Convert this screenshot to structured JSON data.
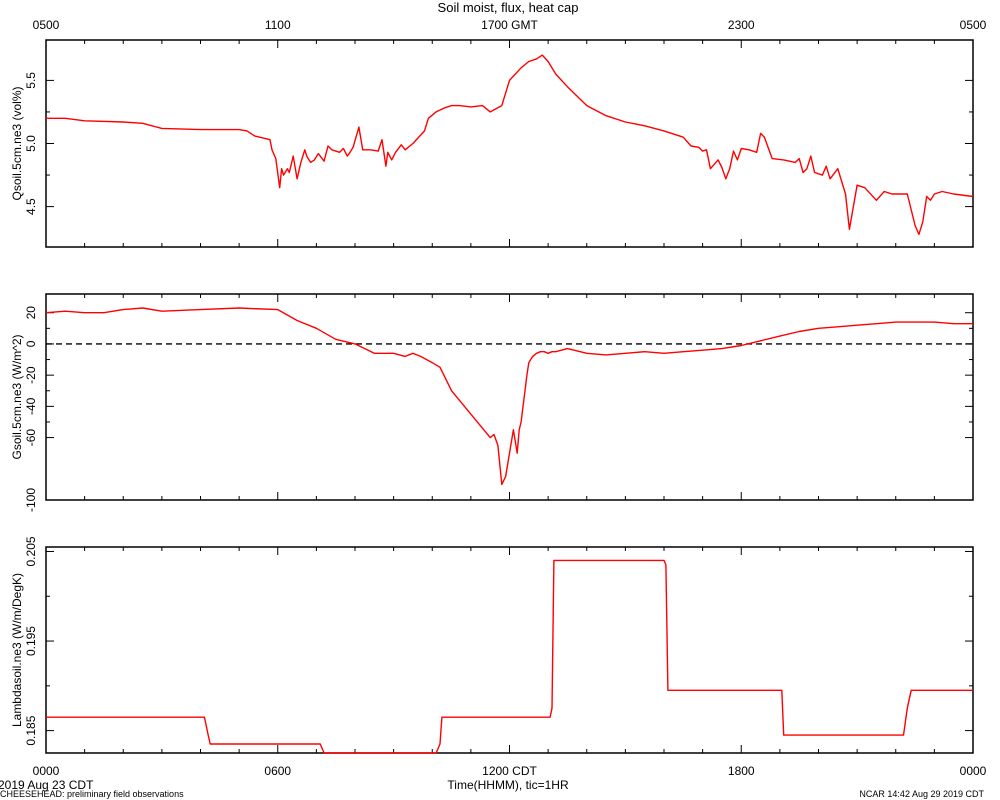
{
  "page": {
    "title": "Soil moist, flux, heat cap",
    "footer_left": "CHEESEHEAD: preliminary field observations",
    "footer_right": "NCAR 14:42 Aug 29 2019 CDT",
    "date_label": "2019 Aug 23 CDT"
  },
  "colors": {
    "series": "#ff0000",
    "axis": "#000000",
    "zero_line": "#000000"
  },
  "chart_data": [
    {
      "type": "line",
      "title": "Soil moist, flux, heat cap",
      "ylabel": "Qsoil.5cm.ne3 (vol%)",
      "ylim": [
        4.18,
        5.82
      ],
      "yticks": [
        4.5,
        5.0,
        5.5
      ],
      "ytick_labels": [
        "4.5",
        "5.0",
        "5.5"
      ],
      "x_top_tick_hours": [
        0,
        6,
        12,
        18,
        24
      ],
      "x_top_tick_labels": [
        "0500",
        "1100",
        "1700 GMT",
        "2300",
        "0500"
      ],
      "series": [
        {
          "x": [
            0,
            0.5,
            1,
            2,
            2.5,
            3,
            4,
            5,
            5.2,
            5.4,
            5.8,
            5.85,
            5.95,
            6.05,
            6.1,
            6.15,
            6.25,
            6.3,
            6.4,
            6.5,
            6.6,
            6.7,
            6.75,
            6.85,
            6.95,
            7.05,
            7.2,
            7.3,
            7.4,
            7.6,
            7.7,
            7.8,
            7.85,
            7.95,
            8.1,
            8.2,
            8.4,
            8.6,
            8.7,
            8.8,
            8.85,
            8.95,
            9.05,
            9.2,
            9.3,
            9.5,
            9.8,
            9.9,
            10.1,
            10.3,
            10.5,
            10.7,
            11,
            11.3,
            11.5,
            11.8,
            12,
            12.3,
            12.5,
            12.7,
            12.85,
            13,
            13.2,
            13.5,
            14,
            14.5,
            15,
            15.5,
            16,
            16.5,
            16.7,
            16.9,
            17,
            17.1,
            17.2,
            17.4,
            17.5,
            17.6,
            17.7,
            17.8,
            17.9,
            18,
            18.2,
            18.4,
            18.5,
            18.6,
            18.8,
            19.1,
            19.4,
            19.5,
            19.6,
            19.7,
            19.8,
            19.9,
            20.1,
            20.2,
            20.3,
            20.5,
            20.7,
            20.8,
            21,
            21.2,
            21.5,
            21.7,
            21.9,
            22.1,
            22.3,
            22.5,
            22.6,
            22.7,
            22.8,
            22.9,
            23,
            23.2,
            23.5,
            24
          ],
          "y": [
            5.2,
            5.2,
            5.18,
            5.17,
            5.16,
            5.12,
            5.11,
            5.11,
            5.1,
            5.06,
            5.03,
            4.95,
            4.88,
            4.65,
            4.8,
            4.75,
            4.8,
            4.77,
            4.9,
            4.72,
            4.85,
            4.95,
            4.9,
            4.85,
            4.87,
            4.92,
            4.86,
            4.98,
            4.95,
            4.93,
            4.96,
            4.9,
            4.92,
            4.97,
            5.13,
            4.95,
            4.95,
            4.94,
            5.03,
            4.82,
            4.93,
            4.87,
            4.93,
            4.99,
            4.95,
            5,
            5.1,
            5.2,
            5.25,
            5.28,
            5.3,
            5.3,
            5.29,
            5.3,
            5.25,
            5.3,
            5.5,
            5.6,
            5.65,
            5.67,
            5.7,
            5.65,
            5.55,
            5.45,
            5.3,
            5.22,
            5.17,
            5.14,
            5.1,
            5.05,
            4.98,
            4.97,
            4.94,
            4.95,
            4.8,
            4.87,
            4.81,
            4.72,
            4.8,
            4.94,
            4.87,
            4.96,
            4.95,
            4.93,
            5.08,
            5.05,
            4.88,
            4.87,
            4.85,
            4.88,
            4.77,
            4.8,
            4.9,
            4.77,
            4.75,
            4.82,
            4.72,
            4.8,
            4.6,
            4.32,
            4.67,
            4.65,
            4.55,
            4.62,
            4.6,
            4.6,
            4.6,
            4.35,
            4.28,
            4.38,
            4.58,
            4.55,
            4.6,
            4.62,
            4.6,
            4.58
          ]
        }
      ]
    },
    {
      "type": "line",
      "ylabel": "Gsoil.5cm.ne3 (W/m^2)",
      "ylim": [
        -100,
        32
      ],
      "yticks": [
        20,
        0,
        -20,
        -40,
        -60,
        -100
      ],
      "ytick_labels": [
        "20",
        "0",
        "-20",
        "-40",
        "-60",
        "-100"
      ],
      "zero_line": true,
      "series": [
        {
          "x": [
            0,
            0.5,
            1,
            1.5,
            2,
            2.5,
            3,
            4,
            5,
            6,
            6.5,
            7,
            7.5,
            8,
            8.5,
            9,
            9.3,
            9.5,
            9.6,
            9.7,
            10,
            10.2,
            10.5,
            11,
            11.5,
            11.6,
            11.7,
            11.8,
            11.9,
            12,
            12.1,
            12.2,
            12.25,
            12.3,
            12.35,
            12.4,
            12.45,
            12.5,
            12.55,
            12.6,
            12.7,
            12.8,
            12.9,
            13,
            13.1,
            13.2,
            13.5,
            14,
            14.5,
            15,
            15.5,
            16,
            16.5,
            17,
            17.5,
            18,
            18.5,
            19,
            19.5,
            20,
            20.5,
            21,
            21.5,
            22,
            22.5,
            23,
            23.5,
            24
          ],
          "y": [
            20,
            21,
            20,
            20,
            22,
            23,
            21,
            22,
            23,
            22,
            15,
            10,
            3,
            0,
            -6,
            -6,
            -8,
            -6,
            -7,
            -8,
            -12,
            -15,
            -30,
            -45,
            -60,
            -58,
            -65,
            -90,
            -85,
            -70,
            -55,
            -70,
            -55,
            -50,
            -40,
            -30,
            -20,
            -12,
            -10,
            -8,
            -6,
            -5,
            -5,
            -6,
            -5,
            -5,
            -3,
            -6,
            -7,
            -6,
            -5,
            -6,
            -5,
            -4,
            -3,
            -1,
            2,
            5,
            8,
            10,
            11,
            12,
            13,
            14,
            14,
            14,
            13,
            13
          ],
          "x_points_note": ""
        }
      ]
    },
    {
      "type": "line",
      "ylabel": "Lambdasoil.ne3 (W/m/DegK)",
      "ylim": [
        0.1825,
        0.2055
      ],
      "yticks": [
        0.185,
        0.195,
        0.205
      ],
      "ytick_labels": [
        "0.185",
        "0.195",
        "0.205"
      ],
      "xlabel": "Time(HHMM), tic=1HR",
      "x_bottom_tick_hours": [
        0,
        6,
        12,
        18,
        24
      ],
      "x_bottom_tick_labels": [
        "0000",
        "0600",
        "1200 CDT",
        "1800",
        "0000"
      ],
      "series": [
        {
          "x": [
            0,
            4.1,
            4.2,
            4.25,
            7.1,
            7.2,
            7.25,
            10.1,
            10.2,
            10.25,
            13.05,
            13.1,
            13.15,
            16,
            16.05,
            16.1,
            19.05,
            19.1,
            19.15,
            22.2,
            22.3,
            22.4,
            24
          ],
          "y": [
            0.1865,
            0.1865,
            0.1845,
            0.1835,
            0.1835,
            0.1825,
            0.1825,
            0.1825,
            0.1835,
            0.1865,
            0.1865,
            0.1875,
            0.204,
            0.204,
            0.2035,
            0.1895,
            0.1895,
            0.1845,
            0.1845,
            0.1845,
            0.1875,
            0.1895,
            0.1895
          ]
        }
      ]
    }
  ]
}
